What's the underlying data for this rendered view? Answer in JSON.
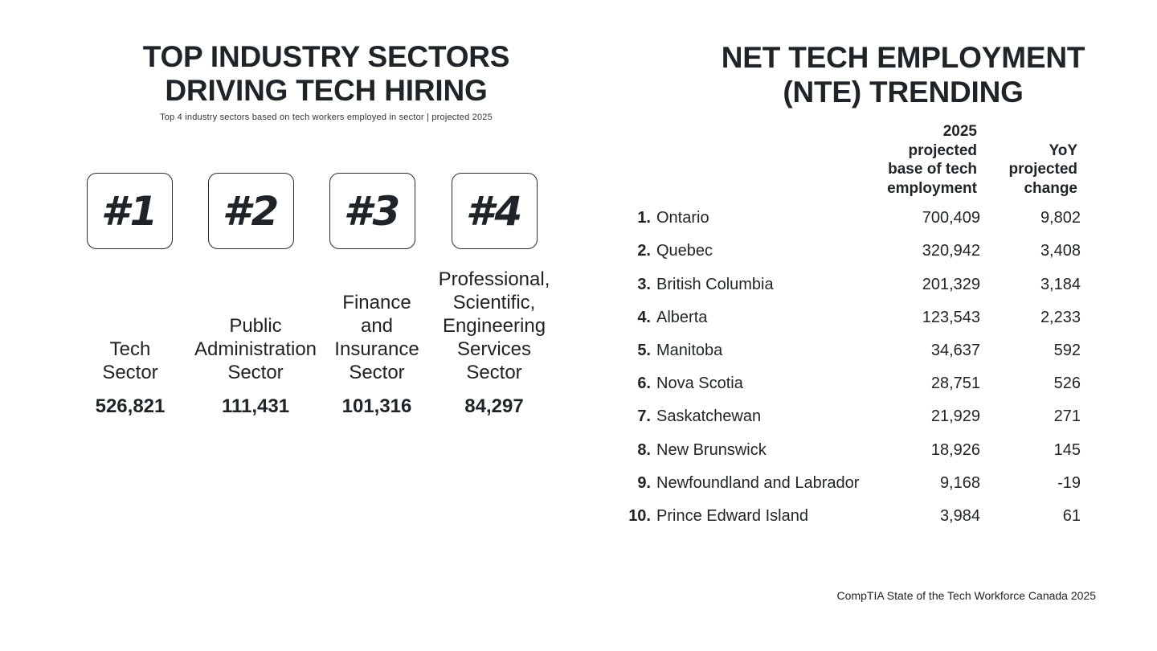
{
  "left": {
    "title_line1": "TOP INDUSTRY SECTORS",
    "title_line2": "DRIVING TECH HIRING",
    "subtitle": "Top 4 industry sectors based on tech workers employed in sector | projected 2025",
    "sectors": [
      {
        "rank": "#1",
        "name": [
          "Tech",
          "Sector"
        ],
        "value": "526,821"
      },
      {
        "rank": "#2",
        "name": [
          "Public",
          "Administration",
          "Sector"
        ],
        "value": "111,431"
      },
      {
        "rank": "#3",
        "name": [
          "Finance",
          "and",
          "Insurance",
          "Sector"
        ],
        "value": "101,316"
      },
      {
        "rank": "#4",
        "name": [
          "Professional,",
          "Scientific,",
          "Engineering",
          "Services",
          "Sector"
        ],
        "value": "84,297"
      }
    ]
  },
  "right": {
    "title_line1": "NET TECH EMPLOYMENT",
    "title_line2": "(NTE) TRENDING",
    "col_base": [
      "2025",
      "projected",
      "base of tech",
      "employment"
    ],
    "col_change": [
      "YoY",
      "projected",
      "change"
    ],
    "rows": [
      {
        "num": "1.",
        "province": "Ontario",
        "base": "700,409",
        "change": "9,802"
      },
      {
        "num": "2.",
        "province": "Quebec",
        "base": "320,942",
        "change": "3,408"
      },
      {
        "num": "3.",
        "province": "British Columbia",
        "base": "201,329",
        "change": "3,184"
      },
      {
        "num": "4.",
        "province": "Alberta",
        "base": "123,543",
        "change": "2,233"
      },
      {
        "num": "5.",
        "province": "Manitoba",
        "base": "34,637",
        "change": "592"
      },
      {
        "num": "6.",
        "province": "Nova Scotia",
        "base": "28,751",
        "change": "526"
      },
      {
        "num": "7.",
        "province": "Saskatchewan",
        "base": "21,929",
        "change": "271"
      },
      {
        "num": "8.",
        "province": "New Brunswick",
        "base": "18,926",
        "change": "145"
      },
      {
        "num": "9.",
        "province": "Newfoundland and Labrador",
        "base": "9,168",
        "change": "-19"
      },
      {
        "num": "10.",
        "province": "Prince Edward Island",
        "base": "3,984",
        "change": "61"
      }
    ]
  },
  "source": "CompTIA State of the Tech Workforce Canada 2025"
}
